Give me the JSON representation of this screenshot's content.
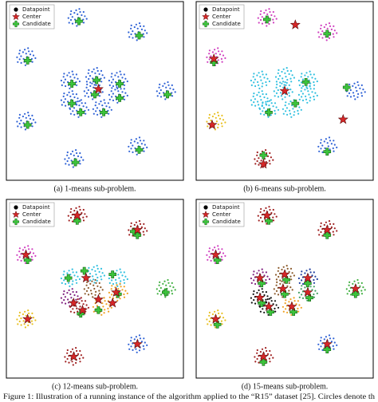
{
  "figure_caption": "Figure 1: Illustration of a running instance of the algorithm applied to the “R15” dataset [25]. Circles denote th",
  "chart_data": [
    {
      "type": "scatter",
      "caption": "(a) 1-means sub-problem.",
      "xlim": [
        0,
        100
      ],
      "ylim": [
        0,
        100
      ],
      "series": [
        {
          "name": "Datapoint",
          "color": "#000000",
          "x": [
            40,
            74,
            11,
            90,
            11,
            74,
            38,
            36,
            50,
            63,
            36,
            49,
            63,
            41,
            54
          ],
          "y": [
            91,
            83,
            69,
            50,
            33,
            19,
            12,
            56,
            58,
            56,
            45,
            50,
            48,
            40,
            40
          ],
          "colors": [
            "#2f62d6",
            "#2f62d6",
            "#2f62d6",
            "#2f62d6",
            "#2f62d6",
            "#2f62d6",
            "#2f62d6",
            "#2f62d6",
            "#2f62d6",
            "#2f62d6",
            "#2f62d6",
            "#2f62d6",
            "#2f62d6",
            "#2f62d6",
            "#2f62d6"
          ]
        },
        {
          "name": "Center",
          "color": "#d62728",
          "x": [
            52
          ],
          "y": [
            51
          ]
        },
        {
          "name": "Candidate",
          "color": "#3cc43c",
          "x": [
            41,
            75,
            12,
            91,
            12,
            75,
            39,
            37,
            51,
            64,
            37,
            50,
            64,
            42,
            55
          ],
          "y": [
            89,
            81,
            67,
            48,
            31,
            17,
            10,
            54,
            56,
            54,
            43,
            48,
            46,
            38,
            38
          ]
        }
      ]
    },
    {
      "type": "scatter",
      "caption": "(b) 6-means sub-problem.",
      "xlim": [
        0,
        100
      ],
      "ylim": [
        0,
        100
      ],
      "series": [
        {
          "name": "Datapoint",
          "color": "#000000",
          "x": [
            40,
            74,
            11,
            90,
            11,
            74,
            38,
            36,
            50,
            63,
            36,
            49,
            63,
            41,
            54
          ],
          "y": [
            91,
            83,
            69,
            50,
            33,
            19,
            12,
            56,
            58,
            56,
            45,
            50,
            48,
            40,
            40
          ],
          "colors": [
            "#d040c0",
            "#d040c0",
            "#d040c0",
            "#2f62d6",
            "#e8c020",
            "#2f62d6",
            "#a02020",
            "#30c0e0",
            "#30c0e0",
            "#30c0e0",
            "#30c0e0",
            "#30c0e0",
            "#30c0e0",
            "#30c0e0",
            "#30c0e0"
          ]
        },
        {
          "name": "Center",
          "color": "#d62728",
          "x": [
            56,
            10,
            9,
            83,
            38,
            50
          ],
          "y": [
            87,
            68,
            31,
            34,
            9,
            50
          ]
        },
        {
          "name": "Candidate",
          "color": "#3cc43c",
          "x": [
            40,
            74,
            10,
            85,
            74,
            38,
            41,
            62,
            56
          ],
          "y": [
            90,
            82,
            66,
            52,
            16,
            14,
            38,
            55,
            43
          ]
        }
      ]
    },
    {
      "type": "scatter",
      "caption": "(c) 12-means sub-problem.",
      "xlim": [
        0,
        100
      ],
      "ylim": [
        0,
        100
      ],
      "series": [
        {
          "name": "Datapoint",
          "color": "#000000",
          "x": [
            40,
            74,
            11,
            90,
            11,
            74,
            38,
            36,
            50,
            63,
            36,
            49,
            63,
            41,
            54
          ],
          "y": [
            91,
            83,
            69,
            50,
            33,
            19,
            12,
            56,
            58,
            56,
            45,
            50,
            48,
            40,
            40
          ],
          "colors": [
            "#a02020",
            "#a02020",
            "#d040c0",
            "#40b040",
            "#e8c020",
            "#2f62d6",
            "#a02020",
            "#30c0e0",
            "#30c0e0",
            "#30c0e0",
            "#802080",
            "#8b5a2b",
            "#f0a020",
            "#a02020",
            "#f0a020"
          ]
        },
        {
          "name": "Center",
          "color": "#d62728",
          "x": [
            40,
            74,
            11,
            12,
            74,
            38,
            45,
            38,
            52,
            60,
            62,
            43
          ],
          "y": [
            91,
            83,
            69,
            33,
            19,
            12,
            56,
            42,
            44,
            42,
            48,
            38
          ]
        },
        {
          "name": "Candidate",
          "color": "#3cc43c",
          "x": [
            40,
            74,
            12,
            90,
            35,
            44,
            60,
            63,
            52,
            42,
            72
          ],
          "y": [
            88,
            80,
            66,
            48,
            56,
            60,
            58,
            47,
            38,
            36,
            82
          ]
        }
      ]
    },
    {
      "type": "scatter",
      "caption": "(d) 15-means sub-problem.",
      "xlim": [
        0,
        100
      ],
      "ylim": [
        0,
        100
      ],
      "series": [
        {
          "name": "Datapoint",
          "color": "#000000",
          "x": [
            40,
            74,
            11,
            90,
            11,
            74,
            38,
            36,
            50,
            63,
            36,
            49,
            63,
            41,
            54
          ],
          "y": [
            91,
            83,
            69,
            50,
            33,
            19,
            12,
            56,
            58,
            56,
            45,
            50,
            48,
            40,
            40
          ],
          "colors": [
            "#a02020",
            "#a02020",
            "#d040c0",
            "#40b040",
            "#e8c020",
            "#2f62d6",
            "#a02020",
            "#802080",
            "#8b5a2b",
            "#1f3fa0",
            "#111111",
            "#8b5a2b",
            "#40a060",
            "#111111",
            "#f0a020"
          ]
        },
        {
          "name": "Center",
          "color": "#d62728",
          "x": [
            40,
            74,
            11,
            90,
            11,
            74,
            38,
            36,
            50,
            63,
            36,
            49,
            63,
            41,
            54
          ],
          "y": [
            91,
            83,
            69,
            50,
            33,
            19,
            12,
            56,
            58,
            56,
            45,
            50,
            48,
            40,
            40
          ]
        },
        {
          "name": "Candidate",
          "color": "#3cc43c",
          "x": [
            41,
            74,
            12,
            90,
            12,
            74,
            38,
            37,
            51,
            63,
            37,
            50,
            64,
            42,
            55
          ],
          "y": [
            88,
            80,
            66,
            47,
            30,
            16,
            9,
            53,
            55,
            53,
            42,
            47,
            45,
            37,
            37
          ]
        }
      ]
    }
  ]
}
